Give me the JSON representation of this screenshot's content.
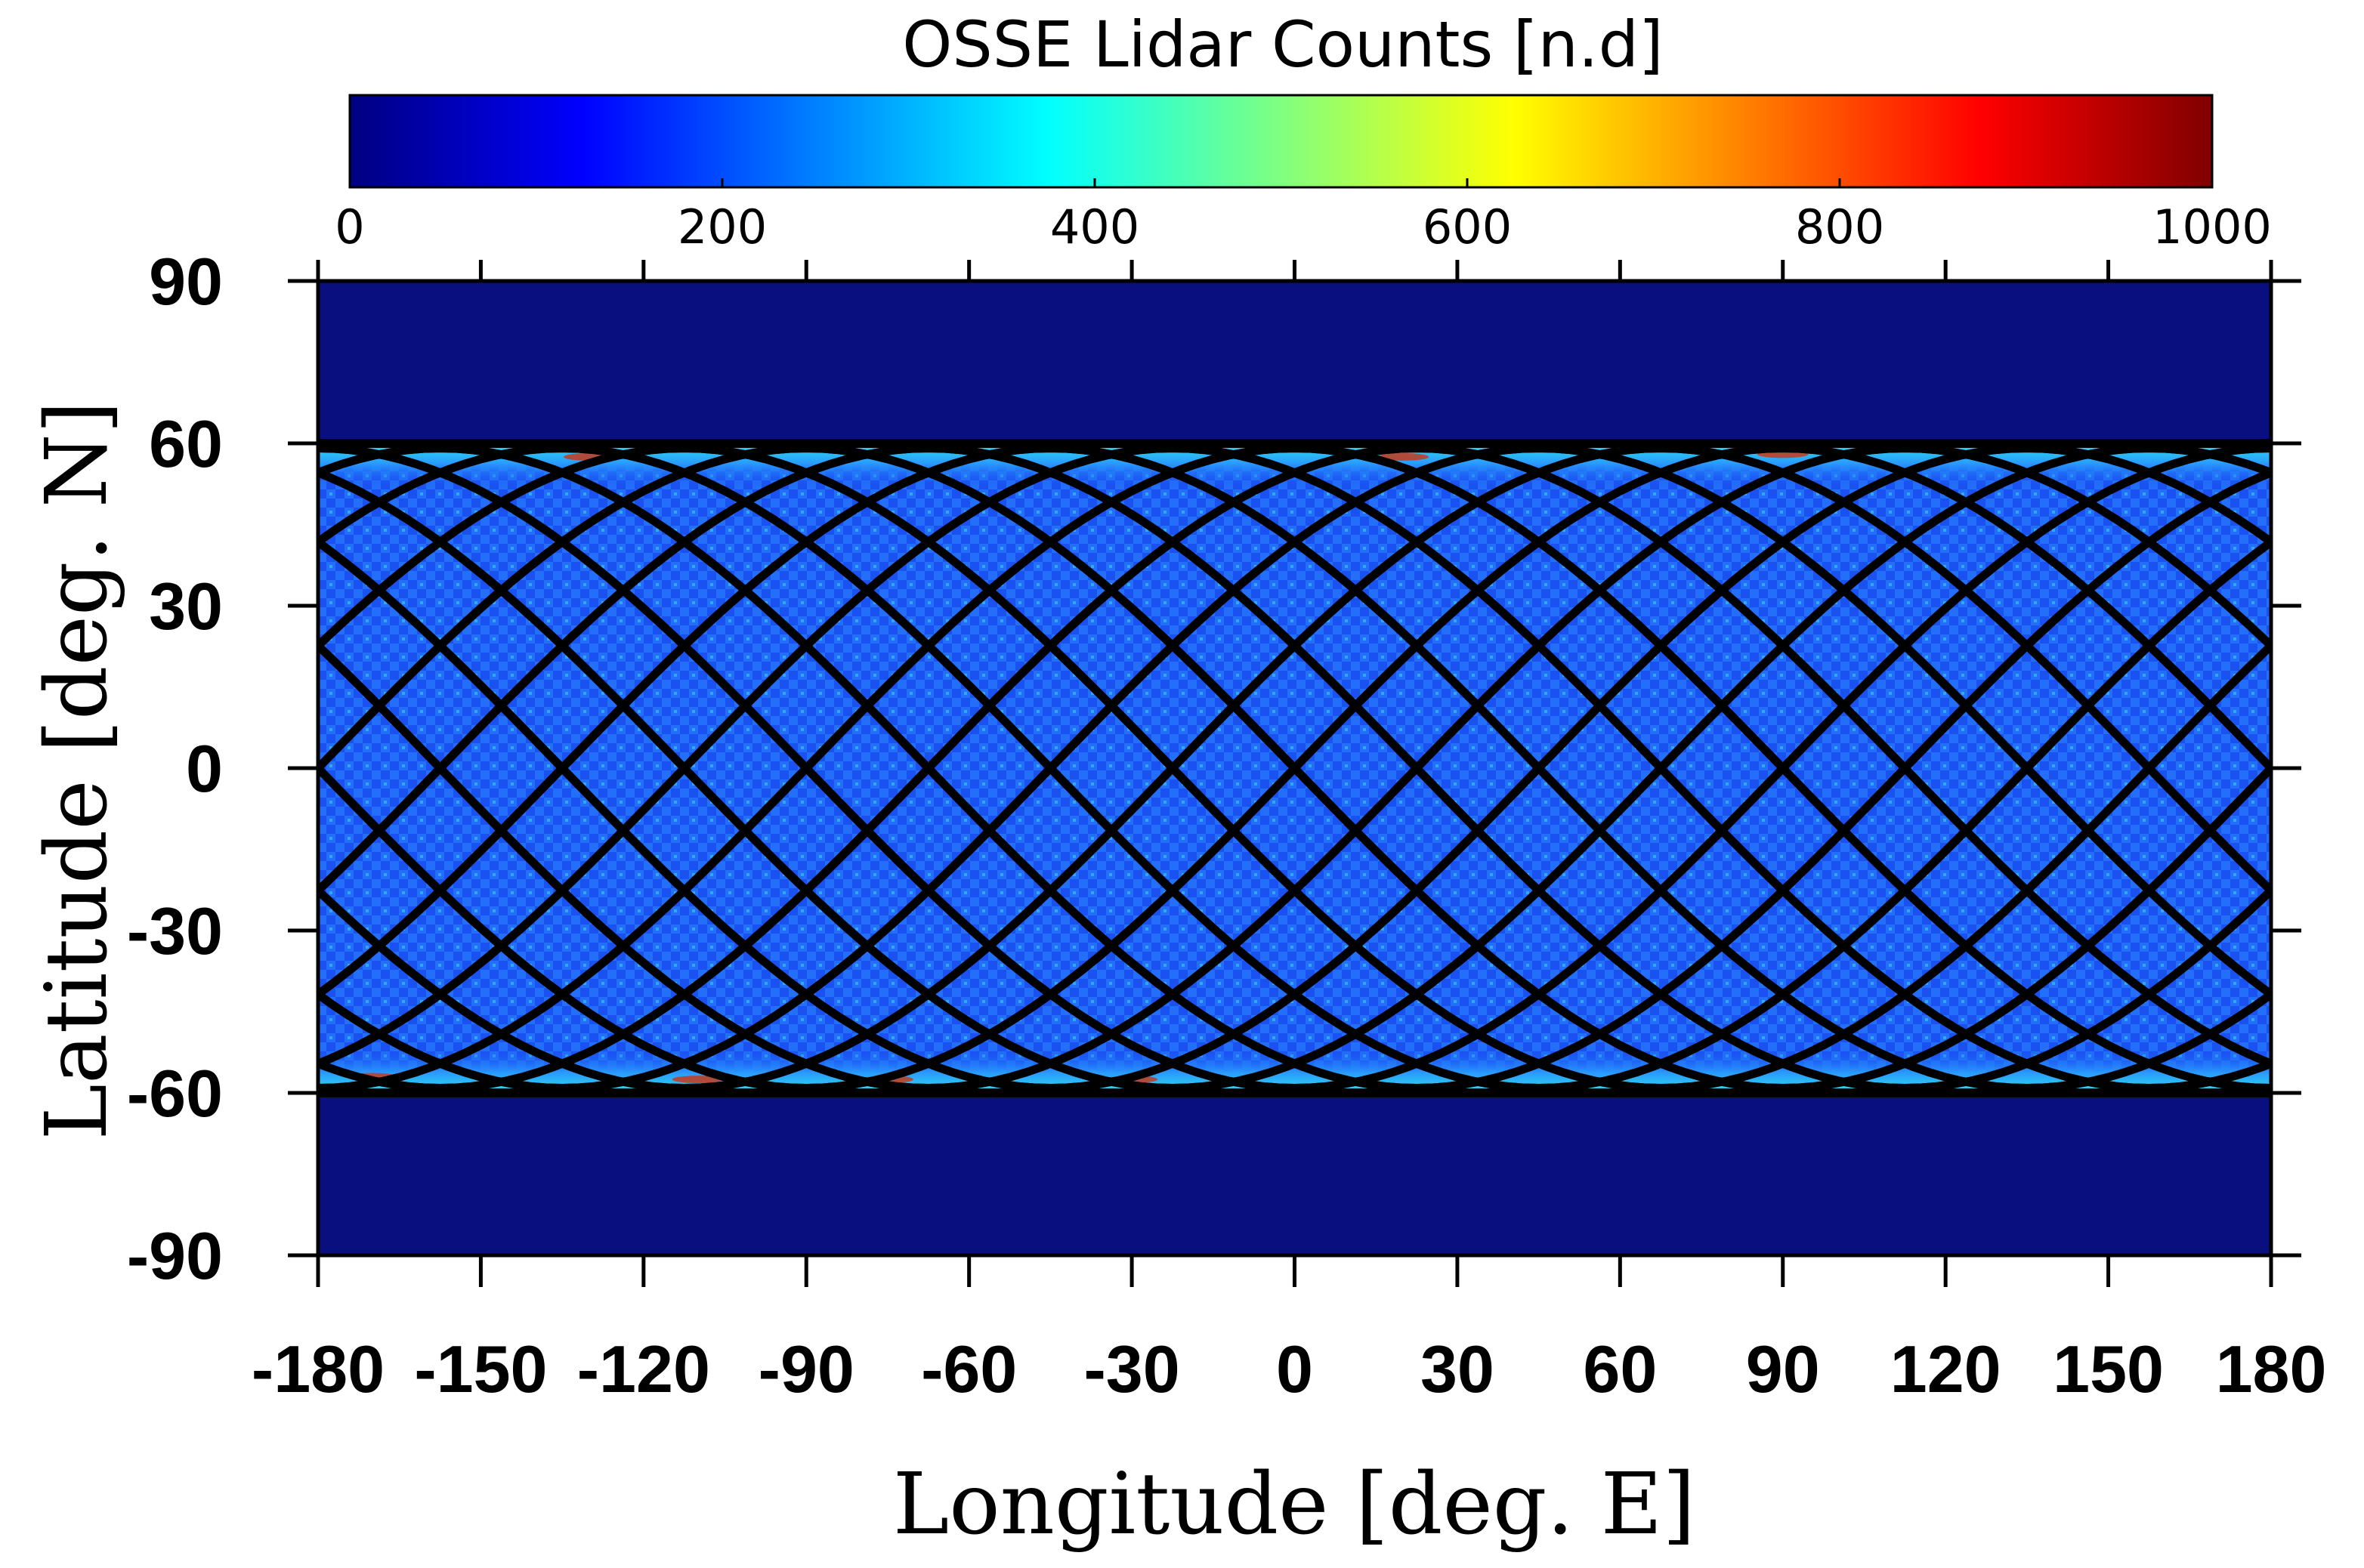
{
  "chart_data": {
    "type": "heatmap",
    "title": "OSSE Lidar Counts [n.d]",
    "xlabel": "Longitude [deg. E]",
    "ylabel": "Latitude [deg. N]",
    "xlim": [
      -180,
      180
    ],
    "ylim": [
      -90,
      90
    ],
    "x_ticks": [
      -180,
      -150,
      -120,
      -90,
      -60,
      -30,
      0,
      30,
      60,
      90,
      120,
      150,
      180
    ],
    "y_ticks": [
      90,
      60,
      30,
      0,
      -30,
      -60,
      -90
    ],
    "x_tick_labels": [
      "-180",
      "-150",
      "-120",
      "-90",
      "-60",
      "-30",
      "0",
      "30",
      "60",
      "90",
      "120",
      "150",
      "180"
    ],
    "y_tick_labels": [
      "90",
      "60",
      "30",
      "0",
      "-30",
      "-60",
      "-90"
    ],
    "colorbar": {
      "label": "OSSE Lidar Counts [n.d]",
      "range": [
        0,
        1000
      ],
      "ticks": [
        0,
        200,
        400,
        600,
        800,
        1000
      ],
      "tick_labels": [
        "0",
        "200",
        "400",
        "600",
        "800",
        "1000"
      ],
      "colormap": "jet",
      "stops": [
        "#000080",
        "#0000ff",
        "#0080ff",
        "#00ffff",
        "#80ff80",
        "#ffff00",
        "#ff8000",
        "#ff0000",
        "#800000"
      ]
    },
    "coverage": {
      "lat_range": [
        -60,
        60
      ],
      "typical_count": 220,
      "edge_count": 350,
      "peak_count": 850,
      "no_data_count": 0
    },
    "orbit_tracks": {
      "inclination_deg": 58,
      "count": 16,
      "color": "#000000",
      "longitude_offsets": [
        -180,
        -157.5,
        -135,
        -112.5,
        -90,
        -67.5,
        -45,
        -22.5,
        0,
        22.5,
        45,
        67.5,
        90,
        112.5,
        135,
        157.5
      ],
      "note": "ascending and descending ground tracks"
    },
    "colors": {
      "no_data": "#0a0f80",
      "coverage_base": "#1a52f2",
      "coverage_light": "#2a86ff",
      "coverage_edge": "#2ee0e8",
      "peak": "#c83a1a"
    }
  }
}
